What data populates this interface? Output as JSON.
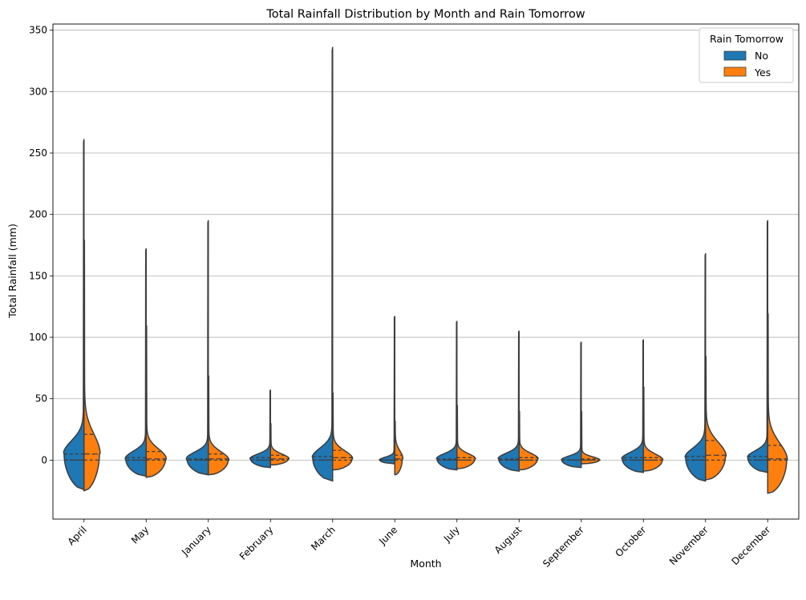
{
  "chart_data": {
    "type": "violin",
    "title": "Total Rainfall Distribution by Month and Rain Tomorrow",
    "xlabel": "Month",
    "ylabel": "Total Rainfall (mm)",
    "ylim": [
      -48,
      355
    ],
    "yticks": [
      0,
      50,
      100,
      150,
      200,
      250,
      300,
      350
    ],
    "grid": "horizontal",
    "split": true,
    "inner": "quartile",
    "categories": [
      "April",
      "May",
      "January",
      "February",
      "March",
      "June",
      "July",
      "August",
      "September",
      "October",
      "November",
      "December"
    ],
    "legend": {
      "title": "Rain Tomorrow",
      "position": "top-right",
      "entries": [
        {
          "label": "No",
          "color": "#1f77b4"
        },
        {
          "label": "Yes",
          "color": "#ff7f0e"
        }
      ]
    },
    "series": [
      {
        "name": "No",
        "color": "#1f77b4",
        "violins": [
          {
            "min": -24,
            "max": 261,
            "q1": 0,
            "median": 0,
            "q3": 5,
            "peak_y": 5,
            "peak_halfwidth": 0.8
          },
          {
            "min": -13,
            "max": 172,
            "q1": 0,
            "median": 0,
            "q3": 2,
            "peak_y": 1,
            "peak_halfwidth": 0.82
          },
          {
            "min": -12,
            "max": 195,
            "q1": 0,
            "median": 0,
            "q3": 1,
            "peak_y": 1,
            "peak_halfwidth": 0.86
          },
          {
            "min": -6,
            "max": 57,
            "q1": 0,
            "median": 0,
            "q3": 2,
            "peak_y": 1,
            "peak_halfwidth": 0.8
          },
          {
            "min": -17,
            "max": 336,
            "q1": 0,
            "median": 0,
            "q3": 3,
            "peak_y": 2,
            "peak_halfwidth": 0.8
          },
          {
            "min": -3,
            "max": 117,
            "q1": 0,
            "median": 0,
            "q3": 0,
            "peak_y": 0,
            "peak_halfwidth": 0.6
          },
          {
            "min": -8,
            "max": 113,
            "q1": 0,
            "median": 0,
            "q3": 1,
            "peak_y": 1,
            "peak_halfwidth": 0.8
          },
          {
            "min": -9,
            "max": 105,
            "q1": 0,
            "median": 0,
            "q3": 1,
            "peak_y": 1,
            "peak_halfwidth": 0.82
          },
          {
            "min": -6,
            "max": 96,
            "q1": 0,
            "median": 0,
            "q3": 0,
            "peak_y": 0,
            "peak_halfwidth": 0.78
          },
          {
            "min": -10,
            "max": 98,
            "q1": 0,
            "median": 0,
            "q3": 2,
            "peak_y": 1,
            "peak_halfwidth": 0.85
          },
          {
            "min": -17,
            "max": 168,
            "q1": 0,
            "median": 0,
            "q3": 3,
            "peak_y": 2,
            "peak_halfwidth": 0.8
          },
          {
            "min": -10,
            "max": 195,
            "q1": 0,
            "median": 0,
            "q3": 3,
            "peak_y": 2,
            "peak_halfwidth": 0.8
          }
        ]
      },
      {
        "name": "Yes",
        "color": "#ff7f0e",
        "violins": [
          {
            "min": -25,
            "max": 180,
            "q1": 0,
            "median": 5,
            "q3": 21,
            "peak_y": 5,
            "peak_halfwidth": 0.62
          },
          {
            "min": -14,
            "max": 110,
            "q1": 0,
            "median": 1,
            "q3": 7,
            "peak_y": 1,
            "peak_halfwidth": 0.78
          },
          {
            "min": -12,
            "max": 69,
            "q1": 0,
            "median": 1,
            "q3": 5,
            "peak_y": 0,
            "peak_halfwidth": 0.8
          },
          {
            "min": -4,
            "max": 30,
            "q1": 0,
            "median": 1,
            "q3": 4,
            "peak_y": 1,
            "peak_halfwidth": 0.72
          },
          {
            "min": -8,
            "max": 55,
            "q1": 0,
            "median": 2,
            "q3": 8,
            "peak_y": 1,
            "peak_halfwidth": 0.78
          },
          {
            "min": -12,
            "max": 32,
            "q1": 0,
            "median": 1,
            "q3": 4,
            "peak_y": 1,
            "peak_halfwidth": 0.3
          },
          {
            "min": -7,
            "max": 45,
            "q1": 0,
            "median": 0,
            "q3": 2,
            "peak_y": 1,
            "peak_halfwidth": 0.72
          },
          {
            "min": -8,
            "max": 40,
            "q1": 0,
            "median": 0,
            "q3": 2,
            "peak_y": 1,
            "peak_halfwidth": 0.74
          },
          {
            "min": -3,
            "max": 40,
            "q1": 0,
            "median": 0,
            "q3": 1,
            "peak_y": 0,
            "peak_halfwidth": 0.72
          },
          {
            "min": -9,
            "max": 60,
            "q1": 0,
            "median": 0,
            "q3": 2,
            "peak_y": 0,
            "peak_halfwidth": 0.76
          },
          {
            "min": -16,
            "max": 85,
            "q1": 0,
            "median": 4,
            "q3": 16,
            "peak_y": 3,
            "peak_halfwidth": 0.8
          },
          {
            "min": -27,
            "max": 120,
            "q1": 0,
            "median": 1,
            "q3": 12,
            "peak_y": 0,
            "peak_halfwidth": 0.76
          }
        ]
      }
    ]
  }
}
